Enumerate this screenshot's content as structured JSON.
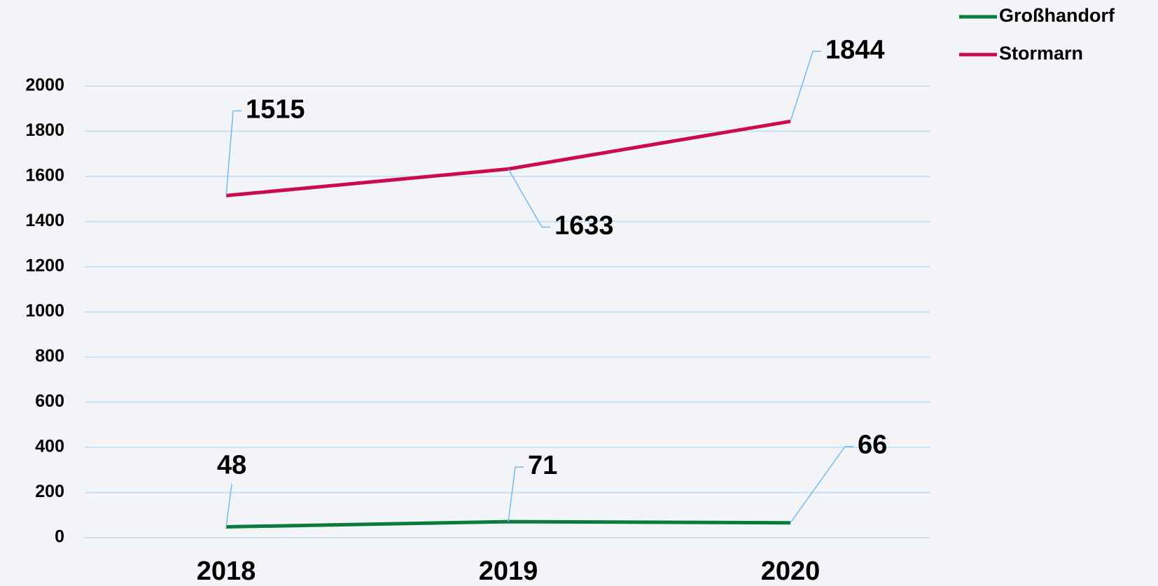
{
  "chart_data": {
    "type": "line",
    "categories": [
      "2018",
      "2019",
      "2020"
    ],
    "series": [
      {
        "name": "Großhandorf",
        "color": "#0b7a3a",
        "values": [
          48,
          71,
          66
        ]
      },
      {
        "name": "Stormarn",
        "color": "#cc0a4e",
        "values": [
          1515,
          1633,
          1844
        ]
      }
    ],
    "ylim": [
      0,
      2000
    ],
    "yticks": [
      0,
      200,
      400,
      600,
      800,
      1000,
      1200,
      1400,
      1600,
      1800,
      2000
    ],
    "grid": true,
    "legend": "top-right"
  }
}
